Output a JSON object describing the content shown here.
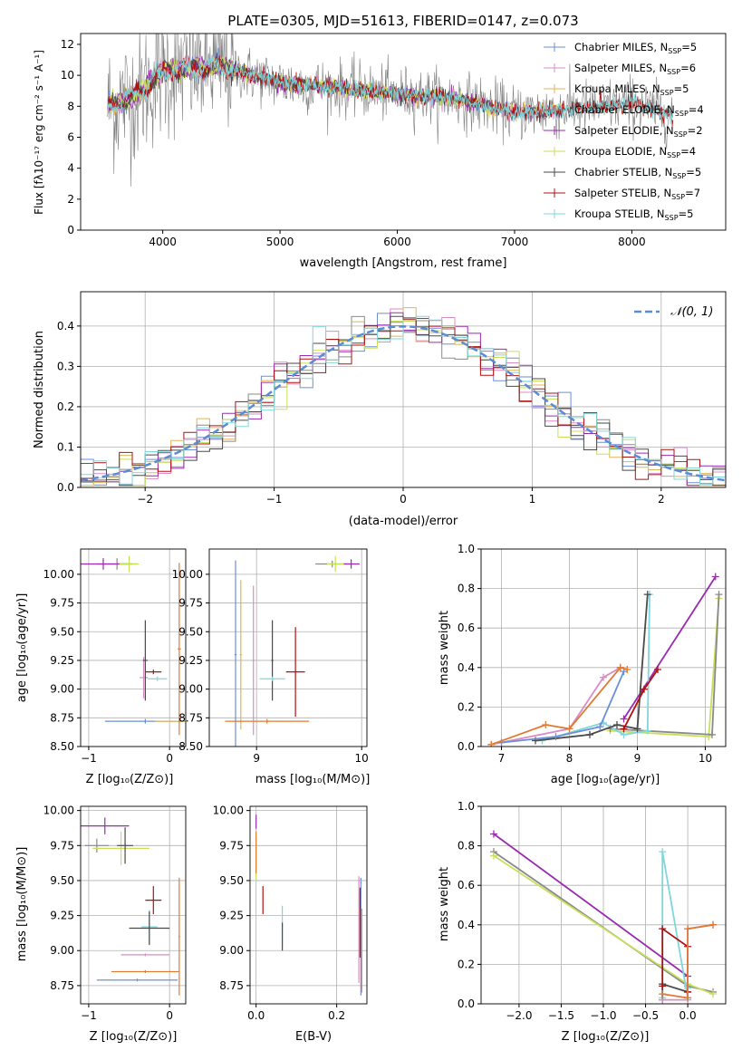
{
  "colors": {
    "chab_miles": "#6b8fd6",
    "salp_miles": "#d98cc7",
    "krou_miles": "#e0b45a",
    "chab_elodie": "#8a8a8a",
    "salp_elodie": "#9a2bb0",
    "krou_elodie": "#c7e05a",
    "chab_stelib": "#4a4a4a",
    "salp_stelib": "#b01010",
    "krou_stelib": "#7fd6dc",
    "data": "#808080",
    "model_main": "#e07a30",
    "normal": "#5b8bd6",
    "grid": "#b0b0b0"
  },
  "legend_top": [
    {
      "text": "Chabrier MILES, N",
      "sub": "SSP",
      "tail": "=5",
      "color": "chab_miles"
    },
    {
      "text": "Salpeter MILES, N",
      "sub": "SSP",
      "tail": "=6",
      "color": "salp_miles"
    },
    {
      "text": "Kroupa MILES, N",
      "sub": "SSP",
      "tail": "=5",
      "color": "krou_miles"
    },
    {
      "text": "Chabrier ELODIE, N",
      "sub": "SSP",
      "tail": "=4",
      "color": "chab_elodie"
    },
    {
      "text": "Salpeter ELODIE, N",
      "sub": "SSP",
      "tail": "=2",
      "color": "salp_elodie"
    },
    {
      "text": "Kroupa ELODIE, N",
      "sub": "SSP",
      "tail": "=4",
      "color": "krou_elodie"
    },
    {
      "text": "Chabrier STELIB, N",
      "sub": "SSP",
      "tail": "=5",
      "color": "chab_stelib"
    },
    {
      "text": "Salpeter STELIB, N",
      "sub": "SSP",
      "tail": "=7",
      "color": "salp_stelib"
    },
    {
      "text": "Kroupa STELIB, N",
      "sub": "SSP",
      "tail": "=5",
      "color": "krou_stelib"
    }
  ],
  "chart_data": [
    {
      "id": "spectrum",
      "type": "line",
      "title": "PLATE=0305, MJD=51613, FIBERID=0147, z=0.073",
      "xlabel": "wavelength [Angstrom, rest frame]",
      "ylabel": "Flux [fλ10⁻¹⁷ erg cm⁻² s⁻¹ A⁻¹]",
      "xlim": [
        3300,
        8800
      ],
      "ylim": [
        0,
        12.7
      ],
      "xticks": [
        4000,
        5000,
        6000,
        7000,
        8000
      ],
      "yticks": [
        0,
        2,
        4,
        6,
        8,
        10,
        12
      ],
      "wavelength_range": [
        3530,
        8350
      ],
      "continuum_nodes": [
        [
          3530,
          8.0
        ],
        [
          3800,
          8.8
        ],
        [
          4000,
          10.3
        ],
        [
          4500,
          10.6
        ],
        [
          5000,
          9.5
        ],
        [
          5500,
          9.2
        ],
        [
          6000,
          8.8
        ],
        [
          6500,
          8.5
        ],
        [
          7000,
          7.6
        ],
        [
          7500,
          7.8
        ],
        [
          8000,
          8.2
        ],
        [
          8350,
          7.4
        ]
      ]
    },
    {
      "id": "residuals",
      "type": "step",
      "xlabel": "(data-model)/error",
      "ylabel": "Normed distribution",
      "xlim": [
        -2.5,
        2.5
      ],
      "ylim": [
        0,
        0.485
      ],
      "xticks": [
        -2,
        -1,
        0,
        1,
        2
      ],
      "yticks": [
        0.0,
        0.1,
        0.2,
        0.3,
        0.4
      ],
      "legend": "𝒩(0, 1)",
      "bin_width": 0.1
    },
    {
      "id": "age_vs_Z",
      "type": "errorbar",
      "xlabel": "Z [log₁₀(Z/Z⊙)]",
      "ylabel": "age  [log₁₀(age/yr)]",
      "xlim": [
        -1.1,
        0.2
      ],
      "ylim": [
        8.5,
        10.22
      ],
      "xticks": [
        -1,
        0
      ],
      "yticks": [
        8.5,
        8.75,
        9.0,
        9.25,
        9.5,
        9.75,
        10.0
      ],
      "points": [
        {
          "c": "chab_miles",
          "x": -0.3,
          "y": 8.72,
          "dx": 0.5,
          "dy": 0.02
        },
        {
          "c": "salp_miles",
          "x": -0.32,
          "y": 9.1,
          "dx": 0.05,
          "dy": 0.18
        },
        {
          "c": "krou_miles",
          "x": 0.12,
          "y": 8.72,
          "dx": 0.3,
          "dy": 0.02
        },
        {
          "c": "chab_elodie",
          "x": -0.65,
          "y": 10.09,
          "dx": 0.25,
          "dy": 0.05
        },
        {
          "c": "salp_elodie",
          "x": -0.82,
          "y": 10.09,
          "dx": 0.35,
          "dy": 0.05
        },
        {
          "c": "krou_elodie",
          "x": -0.5,
          "y": 10.09,
          "dx": 0.12,
          "dy": 0.07
        },
        {
          "c": "chab_stelib",
          "x": -0.3,
          "y": 9.25,
          "dx": 0.03,
          "dy": 0.35
        },
        {
          "c": "salp_stelib",
          "x": -0.2,
          "y": 9.15,
          "dx": 0.1,
          "dy": 0.02
        },
        {
          "c": "krou_stelib",
          "x": -0.15,
          "y": 9.09,
          "dx": 0.12,
          "dy": 0.02
        },
        {
          "c": "model_main",
          "x": 0.12,
          "y": 9.35,
          "dx": 0.02,
          "dy": 0.75
        }
      ]
    },
    {
      "id": "age_vs_mass",
      "type": "errorbar",
      "xlabel": "mass [log₁₀(M/M⊙)]",
      "xlim": [
        8.55,
        10.05
      ],
      "ylim": [
        8.5,
        10.22
      ],
      "xticks": [
        9,
        10
      ],
      "yticks": [
        8.5,
        8.75,
        9.0,
        9.25,
        9.5,
        9.75,
        10.0
      ],
      "points": [
        {
          "c": "chab_miles",
          "x": 8.8,
          "y": 9.3,
          "dx": 0.01,
          "dy": 0.82
        },
        {
          "c": "salp_miles",
          "x": 8.97,
          "y": 9.25,
          "dx": 0.01,
          "dy": 0.65
        },
        {
          "c": "krou_miles",
          "x": 8.85,
          "y": 9.3,
          "dx": 0.01,
          "dy": 0.65
        },
        {
          "c": "model_main",
          "x": 9.1,
          "y": 8.72,
          "dx": 0.4,
          "dy": 0.02
        },
        {
          "c": "chab_elodie",
          "x": 9.72,
          "y": 10.09,
          "dx": 0.16,
          "dy": 0.03
        },
        {
          "c": "salp_elodie",
          "x": 9.9,
          "y": 10.09,
          "dx": 0.08,
          "dy": 0.04
        },
        {
          "c": "krou_elodie",
          "x": 9.75,
          "y": 10.09,
          "dx": 0.08,
          "dy": 0.07
        },
        {
          "c": "chab_stelib",
          "x": 9.15,
          "y": 9.25,
          "dx": 0.01,
          "dy": 0.35
        },
        {
          "c": "salp_stelib",
          "x": 9.37,
          "y": 9.15,
          "dx": 0.09,
          "dy": 0.39
        },
        {
          "c": "krou_stelib",
          "x": 9.15,
          "y": 9.09,
          "dx": 0.12,
          "dy": 0.02
        }
      ]
    },
    {
      "id": "weight_vs_age",
      "type": "line",
      "xlabel": "age  [log₁₀(age/yr)]",
      "ylabel": "mass weight",
      "xlim": [
        6.7,
        10.3
      ],
      "ylim": [
        0,
        1.0
      ],
      "xticks": [
        7,
        8,
        9,
        10
      ],
      "yticks": [
        0.0,
        0.2,
        0.4,
        0.6,
        0.8,
        1.0
      ],
      "series": [
        {
          "c": "krou_elodie",
          "x": [
            8.6,
            10.05,
            10.2
          ],
          "y": [
            0.08,
            0.05,
            0.75
          ]
        },
        {
          "c": "chab_elodie",
          "x": [
            8.6,
            10.1,
            10.2
          ],
          "y": [
            0.09,
            0.06,
            0.77
          ]
        },
        {
          "c": "salp_elodie",
          "x": [
            8.8,
            10.15
          ],
          "y": [
            0.14,
            0.86
          ]
        },
        {
          "c": "krou_stelib",
          "x": [
            7.6,
            8.5,
            8.8,
            9.15,
            9.18
          ],
          "y": [
            0.03,
            0.12,
            0.06,
            0.08,
            0.77
          ]
        },
        {
          "c": "chab_stelib",
          "x": [
            7.5,
            8.3,
            8.7,
            9.0,
            9.15
          ],
          "y": [
            0.03,
            0.06,
            0.11,
            0.09,
            0.77
          ]
        },
        {
          "c": "salp_stelib",
          "x": [
            8.8,
            9.1,
            9.3
          ],
          "y": [
            0.09,
            0.29,
            0.39
          ]
        },
        {
          "c": "salp_miles",
          "x": [
            6.85,
            8.0,
            8.5,
            8.75
          ],
          "y": [
            0.01,
            0.09,
            0.35,
            0.4
          ]
        },
        {
          "c": "chab_miles",
          "x": [
            7.0,
            7.8,
            8.45,
            8.8
          ],
          "y": [
            0.02,
            0.05,
            0.1,
            0.38
          ]
        },
        {
          "c": "model_main",
          "x": [
            6.85,
            7.65,
            8.0,
            8.75,
            8.85
          ],
          "y": [
            0.01,
            0.11,
            0.09,
            0.4,
            0.39
          ]
        }
      ]
    },
    {
      "id": "mass_vs_Z",
      "type": "errorbar",
      "xlabel": "Z [log₁₀(Z/Z⊙)]",
      "ylabel": "mass [log₁₀(M/M⊙)]",
      "xlim": [
        -1.1,
        0.2
      ],
      "ylim": [
        8.62,
        10.03
      ],
      "xticks": [
        -1,
        0
      ],
      "yticks": [
        8.75,
        9.0,
        9.25,
        9.5,
        9.75,
        10.0
      ],
      "points": [
        {
          "c": "chab_miles",
          "x": -0.4,
          "y": 8.79,
          "dx": 0.5,
          "dy": 0.01
        },
        {
          "c": "model_main",
          "x": -0.3,
          "y": 8.85,
          "dx": 0.42,
          "dy": 0.01
        },
        {
          "c": "salp_miles",
          "x": -0.3,
          "y": 8.97,
          "dx": 0.3,
          "dy": 0.01
        },
        {
          "c": "model_main",
          "x": 0.12,
          "y": 9.1,
          "dx": 0.01,
          "dy": 0.42
        },
        {
          "c": "chab_elodie",
          "x": -0.9,
          "y": 9.75,
          "dx": 0.15,
          "dy": 0.05
        },
        {
          "c": "salp_elodie",
          "x": -0.8,
          "y": 9.89,
          "dx": 0.3,
          "dy": 0.06
        },
        {
          "c": "krou_elodie",
          "x": -0.6,
          "y": 9.73,
          "dx": 0.35,
          "dy": 0.12
        },
        {
          "c": "chab_stelib",
          "x": -0.55,
          "y": 9.75,
          "dx": 0.1,
          "dy": 0.13
        },
        {
          "c": "salp_stelib",
          "x": -0.2,
          "y": 9.36,
          "dx": 0.1,
          "dy": 0.1
        },
        {
          "c": "krou_stelib",
          "x": -0.25,
          "y": 9.17,
          "dx": 0.1,
          "dy": 0.12
        },
        {
          "c": "chab_stelib",
          "x": -0.25,
          "y": 9.16,
          "dx": 0.25,
          "dy": 0.12
        }
      ]
    },
    {
      "id": "mass_vs_EBV",
      "type": "errorbar",
      "xlabel": "E(B-V)",
      "xlim": [
        -0.015,
        0.275
      ],
      "ylim": [
        8.62,
        10.03
      ],
      "xticks": [
        0.0,
        0.2
      ],
      "yticks": [
        8.75,
        9.0,
        9.25,
        9.5,
        9.75,
        10.0
      ],
      "points": [
        {
          "c": "salp_elodie",
          "x": 0.0,
          "y": 9.92,
          "dx": 0,
          "dy": 0.05
        },
        {
          "c": "krou_elodie",
          "x": 0.0,
          "y": 9.65,
          "dx": 0,
          "dy": 0.15
        },
        {
          "c": "model_main",
          "x": 0.0,
          "y": 9.7,
          "dx": 0,
          "dy": 0.15
        },
        {
          "c": "salp_stelib",
          "x": 0.017,
          "y": 9.36,
          "dx": 0,
          "dy": 0.1
        },
        {
          "c": "krou_stelib",
          "x": 0.065,
          "y": 9.17,
          "dx": 0,
          "dy": 0.15
        },
        {
          "c": "chab_stelib",
          "x": 0.065,
          "y": 9.1,
          "dx": 0,
          "dy": 0.1
        },
        {
          "c": "salp_miles",
          "x": 0.255,
          "y": 9.15,
          "dx": 0,
          "dy": 0.38
        },
        {
          "c": "chab_miles",
          "x": 0.26,
          "y": 9.1,
          "dx": 0,
          "dy": 0.42
        },
        {
          "c": "model_main",
          "x": 0.262,
          "y": 9.0,
          "dx": 0,
          "dy": 0.3
        },
        {
          "c": "salp_stelib",
          "x": 0.258,
          "y": 9.2,
          "dx": 0,
          "dy": 0.25
        }
      ]
    },
    {
      "id": "weight_vs_Z",
      "type": "line",
      "xlabel": "Z [log₁₀(Z/Z⊙)]",
      "ylabel": "mass weight",
      "xlim": [
        -2.45,
        0.45
      ],
      "ylim": [
        0,
        1.0
      ],
      "xticks": [
        -2.0,
        -1.5,
        -1.0,
        -0.5,
        0.0
      ],
      "yticks": [
        0.0,
        0.2,
        0.4,
        0.6,
        0.8,
        1.0
      ],
      "series": [
        {
          "c": "salp_elodie",
          "x": [
            -2.3,
            0.0
          ],
          "y": [
            0.86,
            0.14
          ]
        },
        {
          "c": "chab_elodie",
          "x": [
            -2.3,
            0.0,
            0.3
          ],
          "y": [
            0.77,
            0.09,
            0.06
          ]
        },
        {
          "c": "krou_elodie",
          "x": [
            -2.3,
            0.0,
            0.3
          ],
          "y": [
            0.75,
            0.1,
            0.05
          ]
        },
        {
          "c": "krou_stelib",
          "x": [
            -0.3,
            -0.3,
            0.0,
            0.0
          ],
          "y": [
            0.03,
            0.77,
            0.03,
            0.08
          ]
        },
        {
          "c": "chab_stelib",
          "x": [
            -0.3,
            -0.3,
            0.0
          ],
          "y": [
            0.02,
            0.1,
            0.06
          ]
        },
        {
          "c": "salp_stelib",
          "x": [
            -0.3,
            -0.3,
            0.0,
            0.0
          ],
          "y": [
            0.09,
            0.38,
            0.29,
            0.06
          ]
        },
        {
          "c": "salp_miles",
          "x": [
            -0.3,
            0.0,
            0.0,
            0.3
          ],
          "y": [
            0.02,
            0.02,
            0.38,
            0.4
          ]
        },
        {
          "c": "model_main",
          "x": [
            -0.3,
            0.0,
            0.0,
            0.3
          ],
          "y": [
            0.05,
            0.03,
            0.38,
            0.4
          ]
        }
      ]
    }
  ]
}
